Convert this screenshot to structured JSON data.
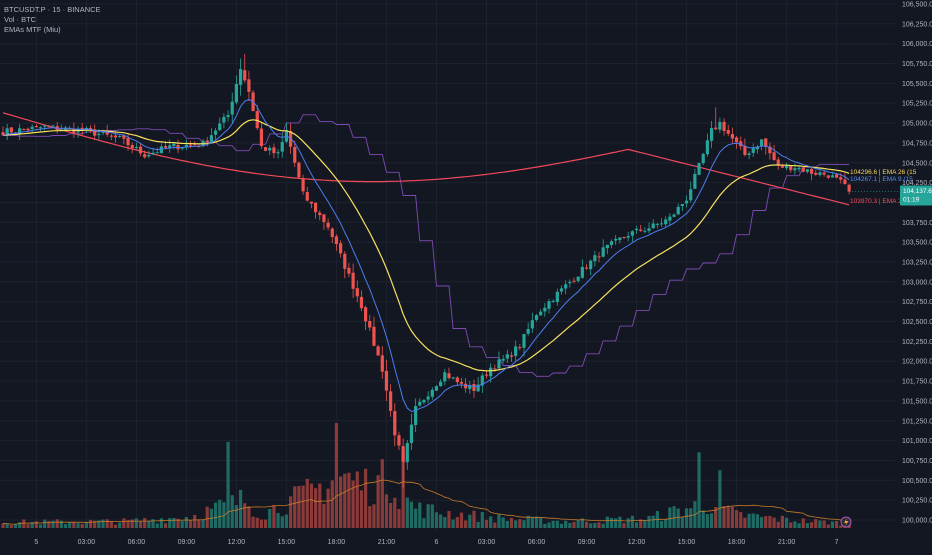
{
  "header": {
    "symbol_line": "BTCUSDT.P · 15 · BINANCE",
    "volume_line": "Vol · BTC",
    "indicator_line": "EMAs MTF (Miu)"
  },
  "price_badge": {
    "price": "104,137.6",
    "countdown": "01:19",
    "color": "#26a69a"
  },
  "ema_labels": [
    {
      "text": "104296.6 | EMA 26 (15",
      "color": "#f7d560"
    },
    {
      "text": "104267.1 | EMA 9 (15",
      "color": "#5b8def"
    },
    {
      "text": "103970.3 | EMA 200",
      "color": "#f0505f"
    }
  ],
  "volume_badge": {
    "icon": "lightning-icon"
  },
  "colors": {
    "background": "#131722",
    "grid": "#1e222d",
    "up": "#26a69a",
    "down": "#ef5350",
    "vol_up": "#1f6b64",
    "vol_down": "#8b3a3a",
    "ema9": "#4c7df0",
    "ema26": "#f7e05e",
    "ema200": "#f2495b",
    "mtf": "#7e4bb4",
    "vol_ma": "#c87b2a"
  },
  "chart_data": {
    "type": "candlestick",
    "symbol": "BTCUSDT.P",
    "interval": "15",
    "exchange": "BINANCE",
    "price_axis_ticks": [
      100000,
      100250,
      100500,
      100750,
      101000,
      101250,
      101500,
      101750,
      102000,
      102250,
      102500,
      102750,
      103000,
      103250,
      103500,
      103750,
      104000,
      104250,
      104500,
      104750,
      105000,
      105250,
      105500,
      105750,
      106000,
      106250,
      106500
    ],
    "price_axis_labels": [
      "100,000.0",
      "100,250.0",
      "100,500.0",
      "100,750.0",
      "101,000.0",
      "101,250.0",
      "101,500.0",
      "101,750.0",
      "102,000.0",
      "102,250.0",
      "102,500.0",
      "102,750.0",
      "103,000.0",
      "103,250.0",
      "103,500.0",
      "103,750.0",
      "104,000.0",
      "104,250.0",
      "104,500.0",
      "104,750.0",
      "105,000.0",
      "105,250.0",
      "105,500.0",
      "105,750.0",
      "106,000.0",
      "106,250.0",
      "106,500.0"
    ],
    "time_axis_labels": [
      "5",
      "03:00",
      "06:00",
      "09:00",
      "12:00",
      "15:00",
      "18:00",
      "21:00",
      "6",
      "03:00",
      "06:00",
      "09:00",
      "12:00",
      "15:00",
      "18:00",
      "21:00",
      "7"
    ],
    "ohlc_knots": [
      [
        0,
        104890
      ],
      [
        10,
        104950
      ],
      [
        20,
        104900
      ],
      [
        28,
        104800
      ],
      [
        34,
        104600
      ],
      [
        40,
        104700
      ],
      [
        48,
        104740
      ],
      [
        54,
        105100
      ],
      [
        57,
        105700
      ],
      [
        59,
        105400
      ],
      [
        62,
        104700
      ],
      [
        66,
        104600
      ],
      [
        68,
        104900
      ],
      [
        72,
        104100
      ],
      [
        78,
        103700
      ],
      [
        82,
        103200
      ],
      [
        86,
        102700
      ],
      [
        91,
        101900
      ],
      [
        94,
        101100
      ],
      [
        96,
        100700
      ],
      [
        99,
        101400
      ],
      [
        102,
        101600
      ],
      [
        106,
        101850
      ],
      [
        110,
        101700
      ],
      [
        113,
        101650
      ],
      [
        117,
        101920
      ],
      [
        121,
        102050
      ],
      [
        124,
        102200
      ],
      [
        128,
        102600
      ],
      [
        133,
        102850
      ],
      [
        138,
        103100
      ],
      [
        144,
        103400
      ],
      [
        150,
        103600
      ],
      [
        156,
        103700
      ],
      [
        160,
        103800
      ],
      [
        164,
        104050
      ],
      [
        167,
        104450
      ],
      [
        170,
        104900
      ],
      [
        172,
        105000
      ],
      [
        175,
        104800
      ],
      [
        178,
        104600
      ],
      [
        182,
        104780
      ],
      [
        186,
        104450
      ],
      [
        190,
        104450
      ],
      [
        194,
        104380
      ],
      [
        198,
        104350
      ],
      [
        201,
        104250
      ],
      [
        203,
        104137.6
      ]
    ],
    "last_price": 104137.6,
    "series": [
      {
        "name": "EMA 9 (15",
        "last": 104267.1
      },
      {
        "name": "EMA 26 (15",
        "last": 104296.6
      },
      {
        "name": "EMA 200",
        "last": 103970.3
      }
    ],
    "volume_knots": [
      [
        0,
        0.06
      ],
      [
        30,
        0.07
      ],
      [
        45,
        0.12
      ],
      [
        52,
        0.22
      ],
      [
        58,
        0.3
      ],
      [
        62,
        0.15
      ],
      [
        70,
        0.3
      ],
      [
        76,
        0.42
      ],
      [
        80,
        0.55
      ],
      [
        84,
        0.5
      ],
      [
        88,
        0.45
      ],
      [
        93,
        0.52
      ],
      [
        96,
        0.3
      ],
      [
        100,
        0.2
      ],
      [
        110,
        0.14
      ],
      [
        120,
        0.1
      ],
      [
        135,
        0.07
      ],
      [
        155,
        0.1
      ],
      [
        165,
        0.22
      ],
      [
        170,
        0.26
      ],
      [
        176,
        0.14
      ],
      [
        190,
        0.08
      ],
      [
        203,
        0.05
      ]
    ]
  }
}
